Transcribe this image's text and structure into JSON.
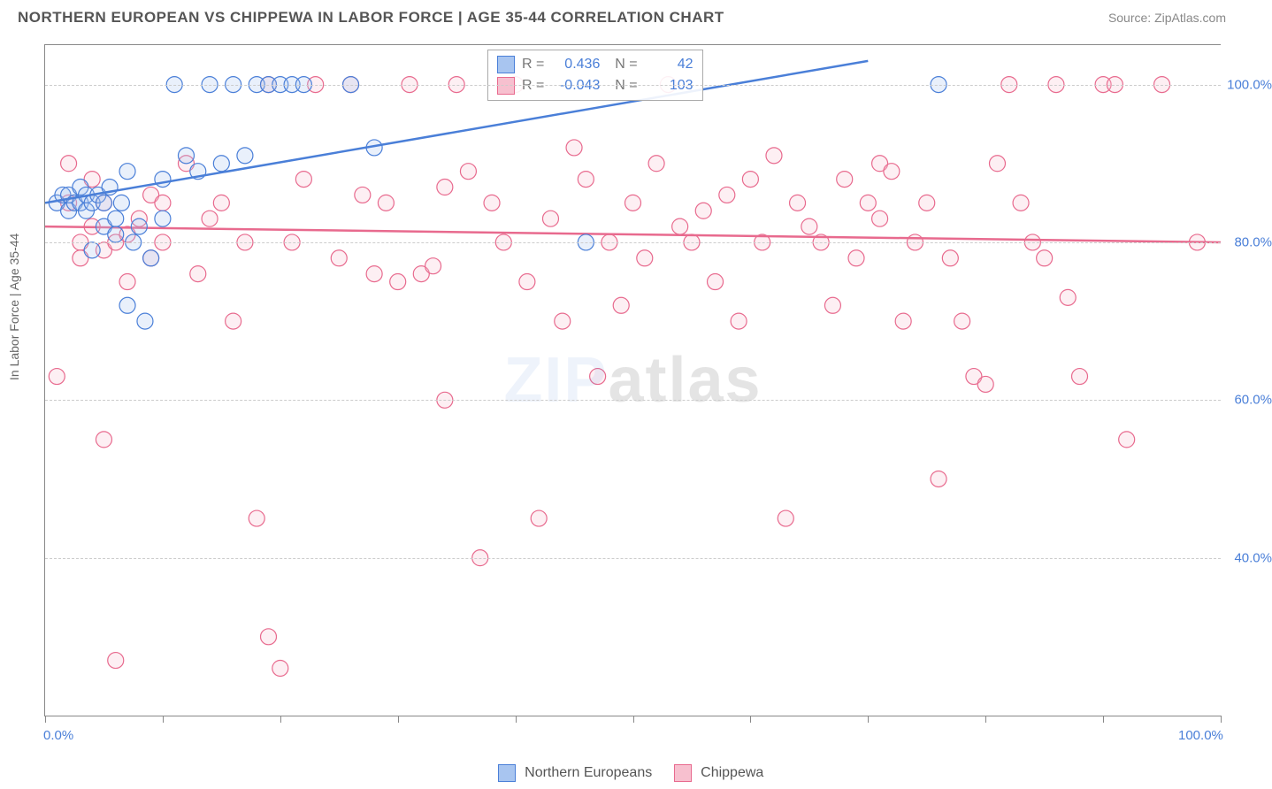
{
  "header": {
    "title": "NORTHERN EUROPEAN VS CHIPPEWA IN LABOR FORCE | AGE 35-44 CORRELATION CHART",
    "source": "Source: ZipAtlas.com"
  },
  "chart": {
    "type": "scatter",
    "ylabel": "In Labor Force | Age 35-44",
    "xlim": [
      0,
      100
    ],
    "ylim": [
      20,
      105
    ],
    "xtick_positions_pct": [
      0,
      10,
      20,
      30,
      40,
      50,
      60,
      70,
      80,
      90,
      100
    ],
    "x_axis_labels": [
      {
        "pos": 0,
        "text": "0.0%"
      },
      {
        "pos": 100,
        "text": "100.0%"
      }
    ],
    "y_gridlines": [
      40,
      60,
      80,
      100
    ],
    "y_axis_labels": [
      {
        "val": 40,
        "text": "40.0%"
      },
      {
        "val": 60,
        "text": "60.0%"
      },
      {
        "val": 80,
        "text": "80.0%"
      },
      {
        "val": 100,
        "text": "100.0%"
      }
    ],
    "background_color": "#ffffff",
    "grid_color": "#cccccc",
    "grid_dash": "4,4",
    "marker_radius": 9,
    "marker_fill_opacity": 0.25,
    "marker_stroke_width": 1.2,
    "line_width": 2.5,
    "watermark": "ZIPatlas",
    "series": [
      {
        "name": "Northern Europeans",
        "color_stroke": "#4a7fd8",
        "color_fill": "#a8c5f0",
        "R": "0.436",
        "N": "42",
        "trend": {
          "x1": 0,
          "y1": 85,
          "x2": 70,
          "y2": 103
        },
        "points": [
          [
            1,
            85
          ],
          [
            1.5,
            86
          ],
          [
            2,
            84
          ],
          [
            2,
            86
          ],
          [
            2.5,
            85
          ],
          [
            3,
            85
          ],
          [
            3,
            87
          ],
          [
            3.5,
            84
          ],
          [
            3.5,
            86
          ],
          [
            4,
            85
          ],
          [
            4,
            79
          ],
          [
            4.5,
            86
          ],
          [
            5,
            82
          ],
          [
            5,
            85
          ],
          [
            5.5,
            87
          ],
          [
            6,
            83
          ],
          [
            6,
            81
          ],
          [
            6.5,
            85
          ],
          [
            7,
            89
          ],
          [
            7,
            72
          ],
          [
            7.5,
            80
          ],
          [
            8,
            82
          ],
          [
            8.5,
            70
          ],
          [
            9,
            78
          ],
          [
            10,
            88
          ],
          [
            10,
            83
          ],
          [
            11,
            100
          ],
          [
            12,
            91
          ],
          [
            13,
            89
          ],
          [
            14,
            100
          ],
          [
            15,
            90
          ],
          [
            16,
            100
          ],
          [
            17,
            91
          ],
          [
            18,
            100
          ],
          [
            19,
            100
          ],
          [
            20,
            100
          ],
          [
            21,
            100
          ],
          [
            22,
            100
          ],
          [
            26,
            100
          ],
          [
            28,
            92
          ],
          [
            46,
            80
          ],
          [
            76,
            100
          ]
        ]
      },
      {
        "name": "Chippewa",
        "color_stroke": "#e86a8e",
        "color_fill": "#f7c0cf",
        "R": "-0.043",
        "N": "103",
        "trend": {
          "x1": 0,
          "y1": 82,
          "x2": 100,
          "y2": 80
        },
        "points": [
          [
            1,
            63
          ],
          [
            2,
            90
          ],
          [
            2,
            85
          ],
          [
            3,
            80
          ],
          [
            3,
            78
          ],
          [
            4,
            88
          ],
          [
            4,
            82
          ],
          [
            5,
            79
          ],
          [
            5,
            55
          ],
          [
            5,
            85
          ],
          [
            6,
            27
          ],
          [
            6,
            80
          ],
          [
            7,
            81
          ],
          [
            7,
            75
          ],
          [
            8,
            83
          ],
          [
            9,
            86
          ],
          [
            9,
            78
          ],
          [
            10,
            85
          ],
          [
            10,
            80
          ],
          [
            12,
            90
          ],
          [
            13,
            76
          ],
          [
            14,
            83
          ],
          [
            15,
            85
          ],
          [
            16,
            70
          ],
          [
            17,
            80
          ],
          [
            18,
            45
          ],
          [
            19,
            30
          ],
          [
            19,
            100
          ],
          [
            20,
            26
          ],
          [
            21,
            80
          ],
          [
            22,
            88
          ],
          [
            23,
            100
          ],
          [
            25,
            78
          ],
          [
            26,
            100
          ],
          [
            27,
            86
          ],
          [
            28,
            76
          ],
          [
            29,
            85
          ],
          [
            30,
            75
          ],
          [
            31,
            100
          ],
          [
            32,
            76
          ],
          [
            33,
            77
          ],
          [
            34,
            60
          ],
          [
            34,
            87
          ],
          [
            35,
            100
          ],
          [
            36,
            89
          ],
          [
            37,
            40
          ],
          [
            38,
            85
          ],
          [
            39,
            80
          ],
          [
            40,
            100
          ],
          [
            41,
            75
          ],
          [
            42,
            45
          ],
          [
            43,
            83
          ],
          [
            44,
            70
          ],
          [
            45,
            92
          ],
          [
            46,
            88
          ],
          [
            47,
            63
          ],
          [
            48,
            80
          ],
          [
            49,
            72
          ],
          [
            50,
            85
          ],
          [
            51,
            78
          ],
          [
            52,
            90
          ],
          [
            53,
            100
          ],
          [
            54,
            82
          ],
          [
            55,
            80
          ],
          [
            56,
            84
          ],
          [
            57,
            75
          ],
          [
            58,
            86
          ],
          [
            59,
            70
          ],
          [
            60,
            88
          ],
          [
            61,
            80
          ],
          [
            62,
            91
          ],
          [
            63,
            45
          ],
          [
            64,
            85
          ],
          [
            65,
            82
          ],
          [
            66,
            80
          ],
          [
            67,
            72
          ],
          [
            68,
            88
          ],
          [
            69,
            78
          ],
          [
            70,
            85
          ],
          [
            71,
            90
          ],
          [
            71,
            83
          ],
          [
            72,
            89
          ],
          [
            73,
            70
          ],
          [
            74,
            80
          ],
          [
            75,
            85
          ],
          [
            76,
            50
          ],
          [
            77,
            78
          ],
          [
            78,
            70
          ],
          [
            79,
            63
          ],
          [
            80,
            62
          ],
          [
            81,
            90
          ],
          [
            82,
            100
          ],
          [
            83,
            85
          ],
          [
            84,
            80
          ],
          [
            85,
            78
          ],
          [
            86,
            100
          ],
          [
            87,
            73
          ],
          [
            88,
            63
          ],
          [
            90,
            100
          ],
          [
            91,
            100
          ],
          [
            92,
            55
          ],
          [
            95,
            100
          ],
          [
            98,
            80
          ]
        ]
      }
    ],
    "legend": {
      "series1_label": "Northern Europeans",
      "series2_label": "Chippewa"
    }
  }
}
